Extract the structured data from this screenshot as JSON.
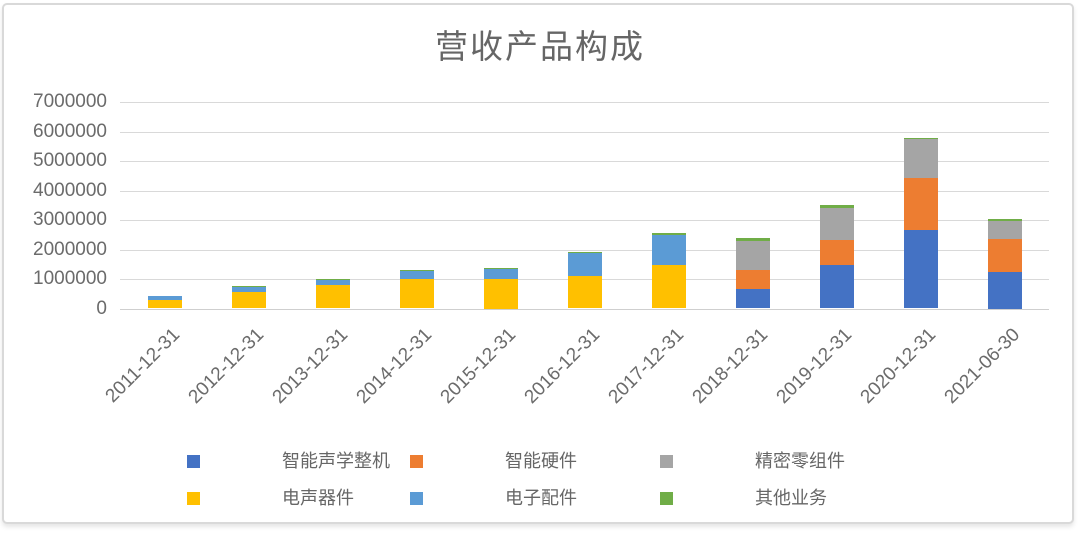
{
  "chart_data": {
    "type": "bar",
    "stacked": true,
    "title": "营收产品构成",
    "categories": [
      "2011-12-31",
      "2012-12-31",
      "2013-12-31",
      "2014-12-31",
      "2015-12-31",
      "2016-12-31",
      "2017-12-31",
      "2018-12-31",
      "2019-12-31",
      "2020-12-31",
      "2021-06-30"
    ],
    "series": [
      {
        "name": "智能声学整机",
        "color": "#4472C4",
        "values": [
          0,
          0,
          0,
          0,
          0,
          0,
          0,
          670000,
          1470000,
          2660000,
          1250000
        ]
      },
      {
        "name": "智能硬件",
        "color": "#ED7D31",
        "values": [
          0,
          0,
          0,
          0,
          0,
          0,
          0,
          640000,
          850000,
          1770000,
          1100000
        ]
      },
      {
        "name": "精密零组件",
        "color": "#A5A5A5",
        "values": [
          0,
          0,
          0,
          0,
          0,
          0,
          0,
          980000,
          1100000,
          1300000,
          620000
        ]
      },
      {
        "name": "电声器件",
        "color": "#FFC000",
        "values": [
          300000,
          570000,
          810000,
          990000,
          1000000,
          1090000,
          1480000,
          0,
          0,
          0,
          0
        ]
      },
      {
        "name": "电子配件",
        "color": "#5B9BD5",
        "values": [
          140000,
          160000,
          170000,
          300000,
          350000,
          800000,
          1020000,
          0,
          0,
          0,
          0
        ]
      },
      {
        "name": "其他业务",
        "color": "#70AD47",
        "values": [
          0,
          20000,
          20000,
          20000,
          20000,
          35000,
          50000,
          90000,
          95000,
          45000,
          50000
        ]
      }
    ],
    "y_ticks": [
      7000000,
      6000000,
      5000000,
      4000000,
      3000000,
      2000000,
      1000000,
      0
    ],
    "ylim": [
      0,
      7000000
    ],
    "grid": true,
    "legend_position": "bottom",
    "colors": {
      "gridline": "#d9d9d9",
      "text": "#6b6b6b",
      "title_text": "#666666",
      "border": "#d9d9d9"
    }
  }
}
